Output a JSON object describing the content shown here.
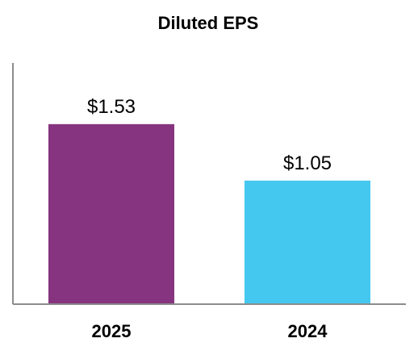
{
  "chart_data": {
    "type": "bar",
    "title": "Diluted EPS",
    "categories": [
      "2025",
      "2024"
    ],
    "values": [
      1.53,
      1.05
    ],
    "value_labels": [
      "$1.53",
      "$1.05"
    ],
    "bar_colors": [
      "#86347F",
      "#44C8F0"
    ],
    "axis_color": "#8C8C8C",
    "ylim": [
      0,
      2.05
    ],
    "grid": false,
    "legend": "none",
    "xlabel": "",
    "ylabel": ""
  }
}
